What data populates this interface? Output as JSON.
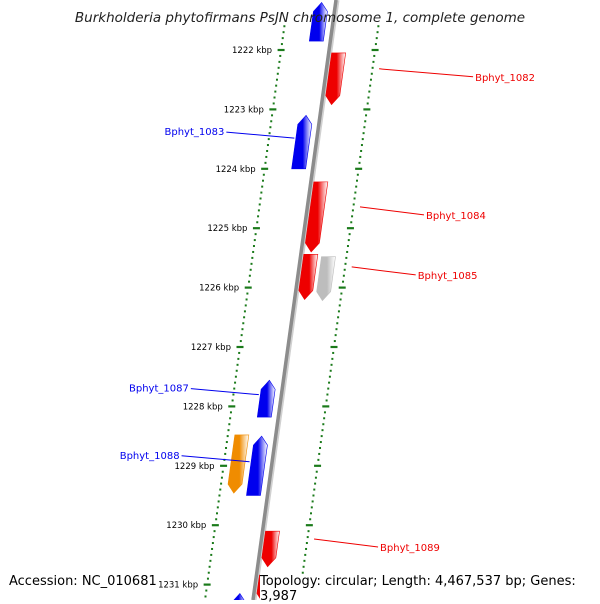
{
  "title": "Burkholderia phytofirmans PsJN chromosome 1, complete genome",
  "footer": {
    "accession": "Accession: NC_010681",
    "topology": "Topology: circular; Length: 4,467,537 bp; Genes: 3,987"
  },
  "colors": {
    "forward": "#ee0000",
    "reverse": "#0000ee",
    "other": "#bdbdbd",
    "orange": "#f08c00",
    "purple": "#5a4eaa",
    "tick": "#1a7a1a",
    "backbone": "#8c8c8c"
  },
  "ticks": [
    {
      "kbp": 1222,
      "label": "1222 kbp"
    },
    {
      "kbp": 1223,
      "label": "1223 kbp"
    },
    {
      "kbp": 1224,
      "label": "1224 kbp"
    },
    {
      "kbp": 1225,
      "label": "1225 kbp"
    },
    {
      "kbp": 1226,
      "label": "1226 kbp"
    },
    {
      "kbp": 1227,
      "label": "1227 kbp"
    },
    {
      "kbp": 1228,
      "label": "1228 kbp"
    },
    {
      "kbp": 1229,
      "label": "1229 kbp"
    },
    {
      "kbp": 1230,
      "label": "1230 kbp"
    },
    {
      "kbp": 1231,
      "label": "1231 kbp"
    }
  ],
  "genes": [
    {
      "label": "",
      "start": 1221.2,
      "end": 1221.85,
      "strand": "-",
      "color": "reverse",
      "side": "right"
    },
    {
      "label": "Bphyt_1082",
      "start": 1222.05,
      "end": 1222.92,
      "strand": "+",
      "color": "forward",
      "side": "right"
    },
    {
      "label": "Bphyt_1083",
      "start": 1223.1,
      "end": 1224.0,
      "strand": "-",
      "color": "reverse",
      "side": "left"
    },
    {
      "label": "Bphyt_1084",
      "start": 1224.22,
      "end": 1225.4,
      "strand": "+",
      "color": "forward",
      "side": "right"
    },
    {
      "label": "Bphyt_1085",
      "start": 1225.44,
      "end": 1226.2,
      "strand": "+",
      "color": "forward",
      "side": "right"
    },
    {
      "label": "",
      "start": 1225.48,
      "end": 1226.22,
      "strand": "+",
      "color": "other",
      "side": "right"
    },
    {
      "label": "Bphyt_1087",
      "start": 1227.56,
      "end": 1228.18,
      "strand": "-",
      "color": "reverse",
      "side": "left"
    },
    {
      "label": "Bphyt_1088",
      "start": 1228.5,
      "end": 1229.5,
      "strand": "-",
      "color": "reverse",
      "side": "left"
    },
    {
      "label": "",
      "start": 1228.48,
      "end": 1229.46,
      "strand": "+",
      "color": "orange",
      "side": "left"
    },
    {
      "label": "Bphyt_1089",
      "start": 1230.1,
      "end": 1230.7,
      "strand": "+",
      "color": "forward",
      "side": "right"
    },
    {
      "label": "",
      "start": 1230.84,
      "end": 1231.3,
      "strand": "+",
      "color": "forward",
      "side": "right"
    },
    {
      "label": "",
      "start": 1230.9,
      "end": 1231.35,
      "strand": "+",
      "color": "purple",
      "side": "right"
    },
    {
      "label": "",
      "start": 1231.15,
      "end": 1231.5,
      "strand": "-",
      "color": "reverse",
      "side": "left"
    }
  ]
}
